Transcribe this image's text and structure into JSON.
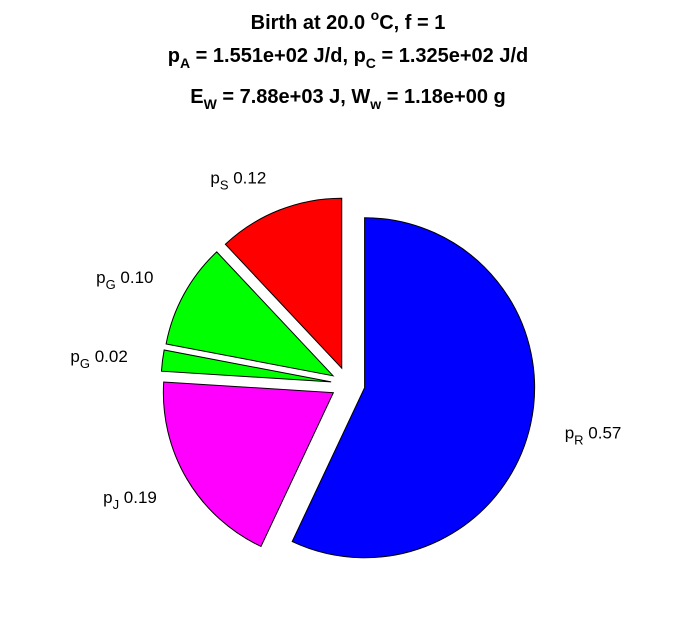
{
  "title": {
    "line1": {
      "prefix": "Birth at 20.0 ",
      "sup": "o",
      "suffix": "C, f = 1"
    },
    "line2": {
      "a_sym": "p",
      "a_sub": "A",
      "a_val": " = 1.551e+02 J/d, ",
      "c_sym": "p",
      "c_sub": "C",
      "c_val": " = 1.325e+02 J/d"
    },
    "line3": {
      "e_sym": "E",
      "e_sub": "W",
      "e_val": " = 7.88e+03 J, ",
      "w_sym": "W",
      "w_sub": "w",
      "w_val": " = 1.18e+00 g"
    }
  },
  "chart_data": {
    "type": "pie",
    "exploded": true,
    "direction": "clockwise-from-top",
    "slices": [
      {
        "symbol": "p",
        "subscript": "R",
        "value": 0.57,
        "label": "0.57",
        "color": "#0000ff"
      },
      {
        "symbol": "p",
        "subscript": "J",
        "value": 0.19,
        "label": "0.19",
        "color": "#ff00ff"
      },
      {
        "symbol": "p",
        "subscript": "G",
        "value": 0.02,
        "label": "0.02",
        "color": "#00ff00"
      },
      {
        "symbol": "p",
        "subscript": "G",
        "value": 0.1,
        "label": "0.10",
        "color": "#00ff00"
      },
      {
        "symbol": "p",
        "subscript": "S",
        "value": 0.12,
        "label": "0.12",
        "color": "#ff0000"
      }
    ]
  }
}
